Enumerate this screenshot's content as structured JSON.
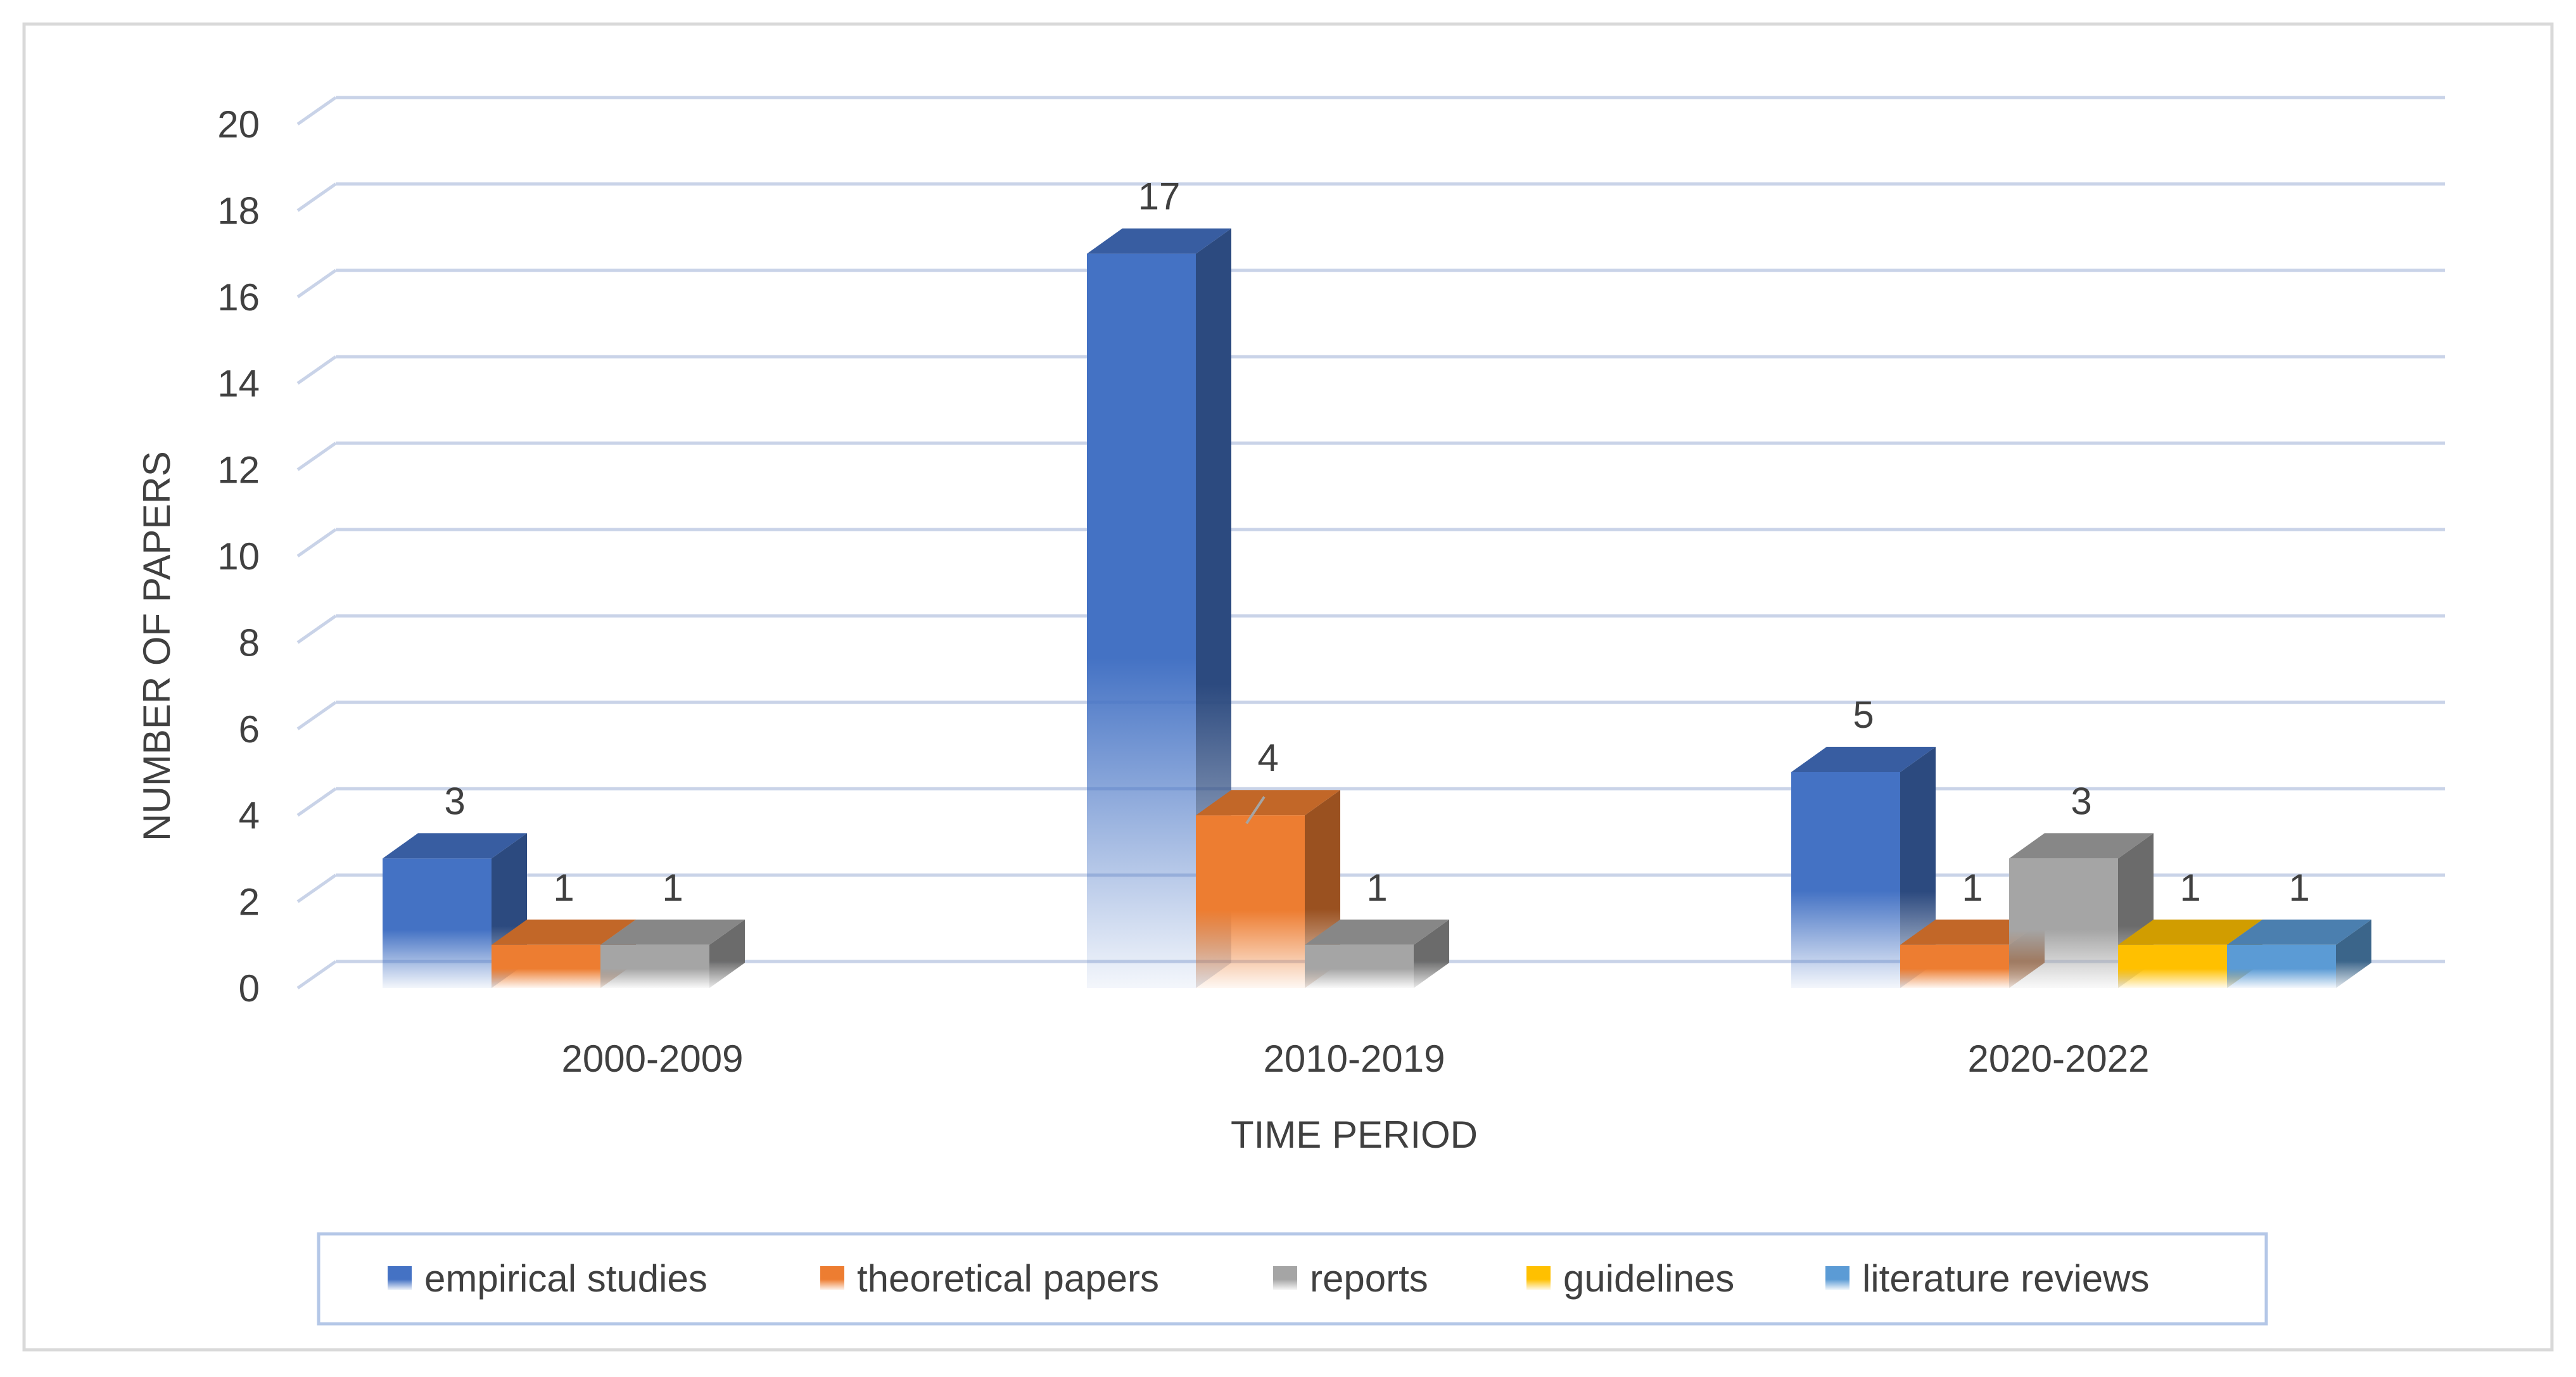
{
  "chart_data": {
    "type": "bar",
    "style": "3d-clustered-column",
    "title": "",
    "categories": [
      "2000-2009",
      "2010-2019",
      "2020-2022"
    ],
    "series": [
      {
        "name": "empirical studies",
        "color": "#4472C4",
        "values": [
          3,
          17,
          5
        ]
      },
      {
        "name": "theoretical papers",
        "color": "#ED7D31",
        "values": [
          1,
          4,
          1
        ]
      },
      {
        "name": "reports",
        "color": "#A5A5A5",
        "values": [
          1,
          1,
          3
        ]
      },
      {
        "name": "guidelines",
        "color": "#FFC000",
        "values": [
          null,
          null,
          1
        ]
      },
      {
        "name": "literature reviews",
        "color": "#5B9BD5",
        "values": [
          null,
          null,
          1
        ]
      }
    ],
    "data_labels": [
      [
        "3",
        "1",
        "1",
        null,
        null
      ],
      [
        "17",
        "4",
        "1",
        null,
        null
      ],
      [
        "5",
        "1",
        "3",
        "1",
        "1"
      ]
    ],
    "xlabel": "TIME PERIOD",
    "ylabel": "NUMBER OF PAPERS",
    "ylim": [
      0,
      20
    ],
    "yticks": [
      "0",
      "2",
      "4",
      "6",
      "8",
      "10",
      "12",
      "14",
      "16",
      "18",
      "20"
    ],
    "grid": true,
    "legend_position": "bottom"
  },
  "colors": {
    "gridline": "#C9D3E8",
    "axis_text": "#404040",
    "frame": "#D9D9D9",
    "legend_border": "#B4C7E7"
  }
}
